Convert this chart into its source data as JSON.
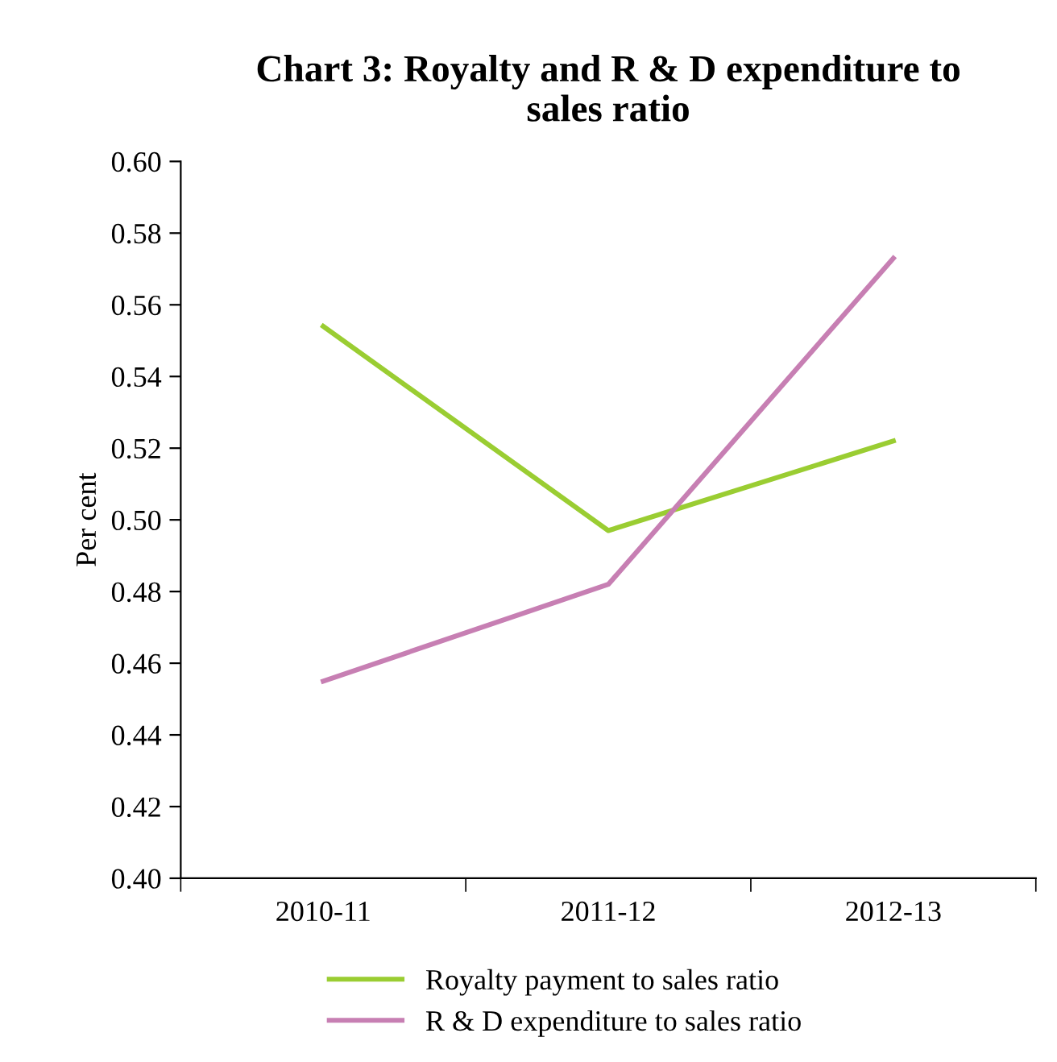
{
  "chart_data": {
    "type": "line",
    "title": "Chart 3: Royalty and R & D expenditure to\nsales ratio",
    "ylabel": "Per cent",
    "categories": [
      "2010-11",
      "2011-12",
      "2012-13"
    ],
    "series": [
      {
        "name": "Royalty payment to sales ratio",
        "color": "#9acd32",
        "values": [
          0.554,
          0.497,
          0.522
        ]
      },
      {
        "name": "R & D expenditure to sales ratio",
        "color": "#c77fb3",
        "values": [
          0.455,
          0.482,
          0.573
        ]
      }
    ],
    "ylim": [
      0.4,
      0.6
    ],
    "yticks": [
      {
        "value": 0.4,
        "label": "0.40"
      },
      {
        "value": 0.42,
        "label": "0.42"
      },
      {
        "value": 0.44,
        "label": "0.44"
      },
      {
        "value": 0.46,
        "label": "0.46"
      },
      {
        "value": 0.48,
        "label": "0.48"
      },
      {
        "value": 0.5,
        "label": "0.50"
      },
      {
        "value": 0.52,
        "label": "0.52"
      },
      {
        "value": 0.54,
        "label": "0.54"
      },
      {
        "value": 0.56,
        "label": "0.56"
      },
      {
        "value": 0.58,
        "label": "0.58"
      },
      {
        "value": 0.6,
        "label": "0.60"
      }
    ],
    "grid": false,
    "legend": "bottom",
    "marker": "none",
    "line_style": "solid"
  }
}
